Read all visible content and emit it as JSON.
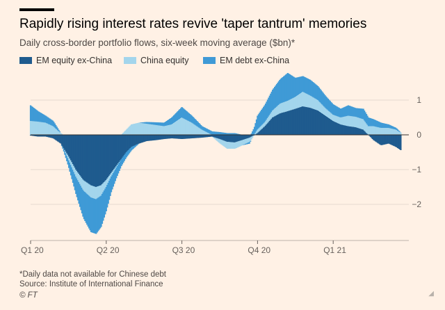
{
  "header": {
    "title": "Rapidly rising interest rates revive 'taper tantrum' memories",
    "subtitle": "Daily cross-border portfolio flows, six-week moving average ($bn)*"
  },
  "legend": [
    {
      "label": "EM equity ex-China",
      "color": "#1f5b8e"
    },
    {
      "label": "China equity",
      "color": "#a3d5ec"
    },
    {
      "label": "EM debt ex-China",
      "color": "#3f9ad6"
    }
  ],
  "footer": {
    "footnote": "*Daily data not available for Chinese debt",
    "source": "Source: Institute of International Finance",
    "credit": "© FT"
  },
  "chart_data": {
    "type": "area",
    "stacked": true,
    "x_unit": "months since 1 Jan 2020",
    "x_range": [
      0,
      15
    ],
    "ylim": [
      -3,
      2
    ],
    "yticks": [
      1,
      0,
      -1,
      -2
    ],
    "xticks": [
      {
        "label": "Q1 20",
        "x": 0
      },
      {
        "label": "Q2 20",
        "x": 3
      },
      {
        "label": "Q3 20",
        "x": 6
      },
      {
        "label": "Q4 20",
        "x": 9
      },
      {
        "label": "Q1 21",
        "x": 12
      }
    ],
    "series": [
      {
        "name": "EM equity ex-China",
        "color": "#1f5b8e",
        "points": [
          [
            0,
            -0.02
          ],
          [
            0.3,
            -0.05
          ],
          [
            0.6,
            -0.05
          ],
          [
            0.9,
            -0.1
          ],
          [
            1.2,
            -0.25
          ],
          [
            1.5,
            -0.6
          ],
          [
            1.8,
            -1.0
          ],
          [
            2.1,
            -1.3
          ],
          [
            2.4,
            -1.45
          ],
          [
            2.6,
            -1.5
          ],
          [
            2.8,
            -1.45
          ],
          [
            3.0,
            -1.3
          ],
          [
            3.2,
            -1.1
          ],
          [
            3.4,
            -0.9
          ],
          [
            3.6,
            -0.7
          ],
          [
            3.8,
            -0.5
          ],
          [
            4.0,
            -0.35
          ],
          [
            4.3,
            -0.25
          ],
          [
            4.6,
            -0.18
          ],
          [
            5.0,
            -0.15
          ],
          [
            5.3,
            -0.12
          ],
          [
            5.6,
            -0.1
          ],
          [
            6.0,
            -0.12
          ],
          [
            6.4,
            -0.1
          ],
          [
            6.8,
            -0.08
          ],
          [
            7.2,
            -0.05
          ],
          [
            7.5,
            -0.12
          ],
          [
            7.8,
            -0.2
          ],
          [
            8.1,
            -0.22
          ],
          [
            8.4,
            -0.15
          ],
          [
            8.7,
            -0.08
          ],
          [
            9.0,
            0.05
          ],
          [
            9.3,
            0.25
          ],
          [
            9.6,
            0.5
          ],
          [
            9.9,
            0.62
          ],
          [
            10.2,
            0.68
          ],
          [
            10.5,
            0.75
          ],
          [
            10.8,
            0.82
          ],
          [
            11.1,
            0.78
          ],
          [
            11.4,
            0.7
          ],
          [
            11.7,
            0.55
          ],
          [
            12.0,
            0.4
          ],
          [
            12.3,
            0.3
          ],
          [
            12.6,
            0.25
          ],
          [
            12.9,
            0.22
          ],
          [
            13.2,
            0.15
          ],
          [
            13.4,
            0.0
          ],
          [
            13.6,
            -0.15
          ],
          [
            13.9,
            -0.3
          ],
          [
            14.2,
            -0.25
          ],
          [
            14.5,
            -0.35
          ],
          [
            14.7,
            -0.45
          ]
        ]
      },
      {
        "name": "China equity",
        "color": "#a3d5ec",
        "points": [
          [
            0,
            0.4
          ],
          [
            0.3,
            0.38
          ],
          [
            0.6,
            0.35
          ],
          [
            0.9,
            0.25
          ],
          [
            1.2,
            0.05
          ],
          [
            1.5,
            -0.1
          ],
          [
            1.8,
            -0.2
          ],
          [
            2.1,
            -0.3
          ],
          [
            2.4,
            -0.35
          ],
          [
            2.6,
            -0.35
          ],
          [
            2.8,
            -0.3
          ],
          [
            3.0,
            -0.2
          ],
          [
            3.2,
            -0.1
          ],
          [
            3.4,
            -0.05
          ],
          [
            3.6,
            0.0
          ],
          [
            3.8,
            0.15
          ],
          [
            4.0,
            0.3
          ],
          [
            4.3,
            0.35
          ],
          [
            4.6,
            0.32
          ],
          [
            5.0,
            0.28
          ],
          [
            5.3,
            0.25
          ],
          [
            5.6,
            0.3
          ],
          [
            6.0,
            0.5
          ],
          [
            6.4,
            0.35
          ],
          [
            6.8,
            0.15
          ],
          [
            7.2,
            0.0
          ],
          [
            7.5,
            -0.12
          ],
          [
            7.8,
            -0.2
          ],
          [
            8.1,
            -0.18
          ],
          [
            8.4,
            -0.15
          ],
          [
            8.7,
            -0.12
          ],
          [
            9.0,
            0.1
          ],
          [
            9.3,
            0.12
          ],
          [
            9.6,
            0.2
          ],
          [
            9.9,
            0.28
          ],
          [
            10.2,
            0.3
          ],
          [
            10.5,
            0.34
          ],
          [
            10.8,
            0.42
          ],
          [
            11.1,
            0.35
          ],
          [
            11.4,
            0.3
          ],
          [
            11.7,
            0.22
          ],
          [
            12.0,
            0.18
          ],
          [
            12.3,
            0.2
          ],
          [
            12.6,
            0.3
          ],
          [
            12.9,
            0.3
          ],
          [
            13.2,
            0.3
          ],
          [
            13.4,
            0.25
          ],
          [
            13.6,
            0.25
          ],
          [
            13.9,
            0.2
          ],
          [
            14.2,
            0.2
          ],
          [
            14.5,
            0.15
          ],
          [
            14.7,
            0.05
          ]
        ]
      },
      {
        "name": "EM debt ex-China",
        "color": "#3f9ad6",
        "points": [
          [
            0,
            0.45
          ],
          [
            0.3,
            0.3
          ],
          [
            0.6,
            0.2
          ],
          [
            0.9,
            0.15
          ],
          [
            1.2,
            0.0
          ],
          [
            1.5,
            -0.2
          ],
          [
            1.8,
            -0.5
          ],
          [
            2.1,
            -0.8
          ],
          [
            2.4,
            -1.0
          ],
          [
            2.6,
            -1.0
          ],
          [
            2.8,
            -0.9
          ],
          [
            3.0,
            -0.7
          ],
          [
            3.2,
            -0.45
          ],
          [
            3.4,
            -0.3
          ],
          [
            3.6,
            -0.2
          ],
          [
            3.8,
            -0.15
          ],
          [
            4.0,
            -0.1
          ],
          [
            4.3,
            0.0
          ],
          [
            4.6,
            0.05
          ],
          [
            5.0,
            0.08
          ],
          [
            5.3,
            0.1
          ],
          [
            5.6,
            0.2
          ],
          [
            6.0,
            0.3
          ],
          [
            6.4,
            0.2
          ],
          [
            6.8,
            0.1
          ],
          [
            7.2,
            0.1
          ],
          [
            7.5,
            0.08
          ],
          [
            7.8,
            0.05
          ],
          [
            8.1,
            0.05
          ],
          [
            8.4,
            0.0
          ],
          [
            8.7,
            -0.05
          ],
          [
            9.0,
            0.4
          ],
          [
            9.3,
            0.5
          ],
          [
            9.6,
            0.6
          ],
          [
            9.9,
            0.7
          ],
          [
            10.2,
            0.8
          ],
          [
            10.5,
            0.55
          ],
          [
            10.8,
            0.45
          ],
          [
            11.1,
            0.45
          ],
          [
            11.4,
            0.4
          ],
          [
            11.7,
            0.35
          ],
          [
            12.0,
            0.3
          ],
          [
            12.3,
            0.25
          ],
          [
            12.6,
            0.3
          ],
          [
            12.9,
            0.25
          ],
          [
            13.2,
            0.3
          ],
          [
            13.4,
            0.25
          ],
          [
            13.6,
            0.2
          ],
          [
            13.9,
            0.15
          ],
          [
            14.2,
            0.1
          ],
          [
            14.5,
            0.05
          ],
          [
            14.7,
            0.0
          ]
        ]
      }
    ]
  }
}
